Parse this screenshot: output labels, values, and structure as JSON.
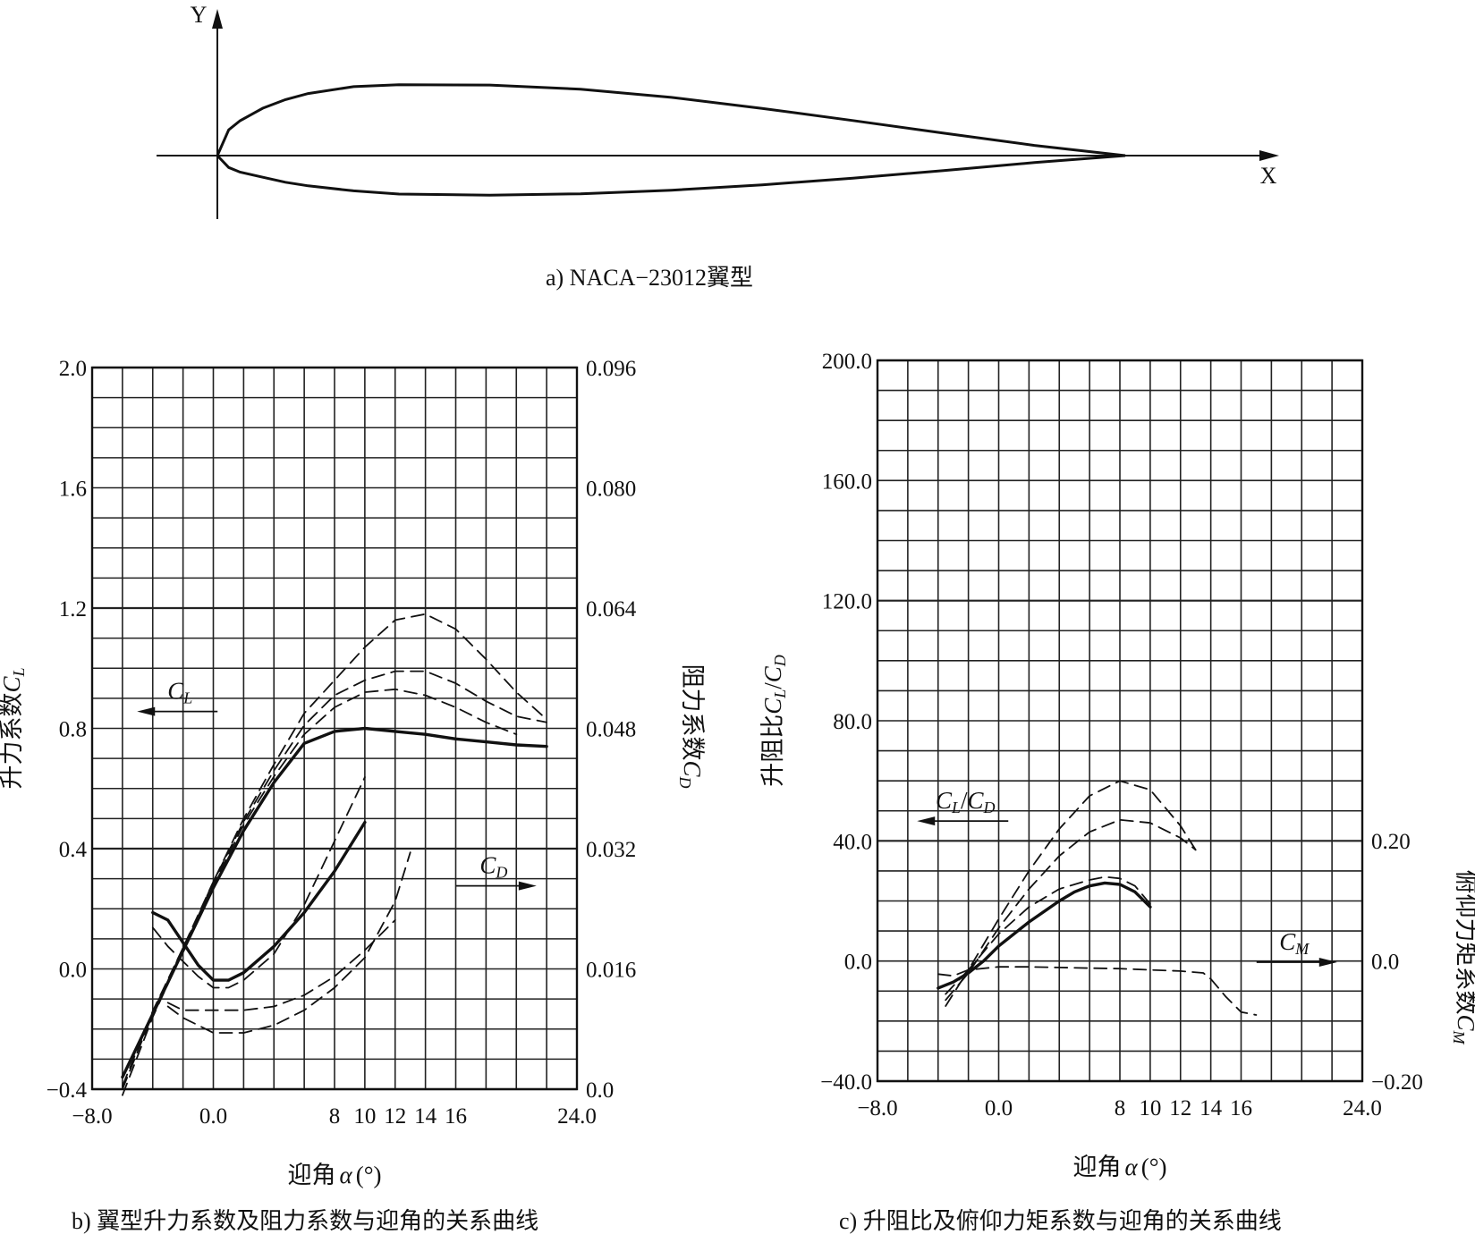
{
  "captions": {
    "a": "a) NACA−23012翼型",
    "b": "b) 翼型升力系数及阻力系数与迎角的关系曲线",
    "c": "c) 升阻比及俯仰力矩系数与迎角的关系曲线"
  },
  "airfoil": {
    "x_axis_label": "X",
    "y_axis_label": "Y",
    "upper_surface": [
      [
        0,
        0
      ],
      [
        0.0125,
        0.0267
      ],
      [
        0.025,
        0.0361
      ],
      [
        0.05,
        0.0491
      ],
      [
        0.075,
        0.058
      ],
      [
        0.1,
        0.0643
      ],
      [
        0.15,
        0.0714
      ],
      [
        0.2,
        0.0733
      ],
      [
        0.3,
        0.0731
      ],
      [
        0.4,
        0.0688
      ],
      [
        0.5,
        0.0603
      ],
      [
        0.6,
        0.0489
      ],
      [
        0.7,
        0.0363
      ],
      [
        0.8,
        0.0232
      ],
      [
        0.9,
        0.0106
      ],
      [
        1.0,
        0.0
      ]
    ],
    "lower_surface": [
      [
        0,
        0
      ],
      [
        0.0125,
        -0.0123
      ],
      [
        0.025,
        -0.0171
      ],
      [
        0.05,
        -0.0224
      ],
      [
        0.075,
        -0.0276
      ],
      [
        0.1,
        -0.0313
      ],
      [
        0.15,
        -0.0365
      ],
      [
        0.2,
        -0.0398
      ],
      [
        0.3,
        -0.041
      ],
      [
        0.4,
        -0.0395
      ],
      [
        0.5,
        -0.0358
      ],
      [
        0.6,
        -0.0303
      ],
      [
        0.7,
        -0.0233
      ],
      [
        0.8,
        -0.0155
      ],
      [
        0.9,
        -0.0072
      ],
      [
        1.0,
        0.0
      ]
    ]
  },
  "chart_data": [
    {
      "type": "line",
      "xlabel_prefix": "迎角",
      "xlabel_symbol": "α",
      "xlabel_suffix": "(°)",
      "ylabel_left_text": "升力系数",
      "ylabel_left_symbol": "C",
      "ylabel_left_sub": "L",
      "ylabel_right_text": "阻力系数",
      "ylabel_right_symbol": "C",
      "ylabel_right_sub": "D",
      "xlim": [
        -8,
        24
      ],
      "ylim_left": [
        -0.4,
        2.0
      ],
      "ylim_right": [
        0.0,
        0.096
      ],
      "x_ticks": [
        "−8.0",
        "0.0",
        "8",
        "10",
        "12",
        "14",
        "16",
        "24.0"
      ],
      "x_tick_values": [
        -8,
        0,
        8,
        10,
        12,
        14,
        16,
        24
      ],
      "y_left_ticks": [
        "−0.4",
        "0.0",
        "0.4",
        "0.8",
        "1.2",
        "1.6",
        "2.0"
      ],
      "y_left_tick_values": [
        -0.4,
        0.0,
        0.4,
        0.8,
        1.2,
        1.6,
        2.0
      ],
      "y_right_ticks": [
        "0.0",
        "0.016",
        "0.032",
        "0.048",
        "0.064",
        "0.080",
        "0.096"
      ],
      "y_right_tick_values": [
        0.0,
        0.016,
        0.032,
        0.048,
        0.064,
        0.08,
        0.096
      ],
      "grid": true,
      "annotations": [
        {
          "symbol": "C",
          "sub": "L",
          "arrow": "left",
          "x": -2.2,
          "y": 0.88
        },
        {
          "symbol": "C",
          "sub": "D",
          "arrow": "right",
          "x": 18.5,
          "y": 0.3
        }
      ],
      "series": [
        {
          "axis": "left",
          "style": "solid",
          "x": [
            -6,
            -4,
            -2,
            0,
            2,
            4,
            6,
            8,
            10,
            12,
            14,
            16,
            18,
            20,
            22
          ],
          "y": [
            -0.36,
            -0.15,
            0.06,
            0.27,
            0.46,
            0.62,
            0.75,
            0.79,
            0.8,
            0.79,
            0.78,
            0.765,
            0.755,
            0.745,
            0.74
          ]
        },
        {
          "axis": "left",
          "style": "dashed",
          "x": [
            -6,
            -4,
            -2,
            0,
            2,
            4,
            6,
            8,
            10,
            12,
            14,
            16,
            18,
            20,
            22
          ],
          "y": [
            -0.42,
            -0.16,
            0.06,
            0.29,
            0.5,
            0.68,
            0.85,
            0.96,
            1.07,
            1.16,
            1.18,
            1.13,
            1.03,
            0.92,
            0.83
          ]
        },
        {
          "axis": "left",
          "style": "dashed",
          "x": [
            -6,
            -4,
            -2,
            0,
            2,
            4,
            6,
            8,
            10,
            12,
            14,
            16,
            18,
            20,
            22
          ],
          "y": [
            -0.4,
            -0.15,
            0.07,
            0.29,
            0.49,
            0.66,
            0.81,
            0.91,
            0.96,
            0.99,
            0.99,
            0.95,
            0.89,
            0.84,
            0.82
          ]
        },
        {
          "axis": "left",
          "style": "dashed",
          "x": [
            -6,
            -4,
            -2,
            0,
            2,
            4,
            6,
            8,
            10,
            12,
            14,
            16,
            18,
            20
          ],
          "y": [
            -0.39,
            -0.14,
            0.07,
            0.28,
            0.48,
            0.64,
            0.78,
            0.87,
            0.92,
            0.93,
            0.91,
            0.87,
            0.82,
            0.78
          ]
        },
        {
          "axis": "right",
          "style": "solid",
          "x": [
            -4,
            -3,
            -2,
            -1,
            0,
            1,
            2,
            4,
            6,
            8,
            10
          ],
          "y": [
            0.0235,
            0.0225,
            0.0195,
            0.0165,
            0.0145,
            0.0145,
            0.0155,
            0.019,
            0.0235,
            0.029,
            0.0355
          ]
        },
        {
          "axis": "right",
          "style": "dashed",
          "x": [
            -4,
            -3,
            -2,
            -1,
            0,
            1,
            2,
            4,
            6,
            8,
            10
          ],
          "y": [
            0.0215,
            0.019,
            0.017,
            0.015,
            0.0135,
            0.0135,
            0.0145,
            0.018,
            0.0245,
            0.033,
            0.0415
          ]
        },
        {
          "axis": "right",
          "style": "dashed",
          "x": [
            -3,
            -2,
            0,
            2,
            4,
            6,
            8,
            10,
            12,
            13
          ],
          "y": [
            0.011,
            0.0095,
            0.0075,
            0.0075,
            0.0085,
            0.0105,
            0.0135,
            0.0175,
            0.025,
            0.0315
          ]
        },
        {
          "axis": "right",
          "style": "dashed",
          "x": [
            -3,
            -2,
            0,
            2,
            4,
            6,
            8,
            10,
            12
          ],
          "y": [
            0.0115,
            0.0105,
            0.0105,
            0.0105,
            0.011,
            0.0125,
            0.015,
            0.0185,
            0.0225
          ]
        }
      ]
    },
    {
      "type": "line",
      "xlabel_prefix": "迎角",
      "xlabel_symbol": "α",
      "xlabel_suffix": "(°)",
      "ylabel_left_text": "升阻比",
      "ylabel_left_symbol": "C",
      "ylabel_left_sub": "L",
      "ylabel_left_slash": "/",
      "ylabel_left_symbol2": "C",
      "ylabel_left_sub2": "D",
      "ylabel_right_text": "俯仰力矩系数",
      "ylabel_right_symbol": "C",
      "ylabel_right_sub": "M",
      "xlim": [
        -8,
        24
      ],
      "ylim_left": [
        -40,
        200
      ],
      "ylim_right": [
        -0.2,
        0.2
      ],
      "x_ticks": [
        "−8.0",
        "0.0",
        "8",
        "10",
        "12",
        "14",
        "16",
        "24.0"
      ],
      "x_tick_values": [
        -8,
        0,
        8,
        10,
        12,
        14,
        16,
        24
      ],
      "y_left_ticks": [
        "−40.0",
        "0.0",
        "40.0",
        "80.0",
        "120.0",
        "160.0",
        "200.0"
      ],
      "y_left_tick_values": [
        -40,
        0,
        40,
        80,
        120,
        160,
        200
      ],
      "y_right_ticks": [
        "−0.20",
        "0.0",
        "0.20"
      ],
      "y_right_tick_values": [
        -0.2,
        0.0,
        0.2
      ],
      "grid": true,
      "annotations": [
        {
          "symbol": "C",
          "sub": "L",
          "slash": "/",
          "symbol2": "C",
          "sub2": "D",
          "arrow": "left",
          "x": -2.2,
          "y": 49
        },
        {
          "symbol": "C",
          "sub": "M",
          "arrow": "right",
          "x": 19.5,
          "y": 2
        }
      ],
      "series": [
        {
          "axis": "left",
          "style": "solid",
          "x": [
            -4,
            -3,
            -2,
            -1,
            0,
            2,
            4,
            5,
            6,
            7,
            8,
            9,
            10
          ],
          "y": [
            -9,
            -7,
            -4,
            0,
            5,
            13,
            20,
            23,
            25,
            26,
            25.5,
            23,
            18
          ]
        },
        {
          "axis": "left",
          "style": "dashed",
          "x": [
            -3.5,
            -2,
            0,
            2,
            4,
            6,
            7,
            8,
            9,
            10
          ],
          "y": [
            -15,
            -3,
            9,
            18,
            24,
            27,
            28,
            27.5,
            25,
            19
          ]
        },
        {
          "axis": "left",
          "style": "dashed",
          "x": [
            -3.5,
            -2,
            0,
            2,
            4,
            6,
            8,
            10,
            12,
            13
          ],
          "y": [
            -13,
            -4,
            11,
            24,
            35,
            43,
            47,
            46,
            41,
            37
          ]
        },
        {
          "axis": "left",
          "style": "dashed",
          "x": [
            -3.5,
            -2,
            0,
            2,
            4,
            6,
            8,
            10,
            12,
            13
          ],
          "y": [
            -11,
            -3,
            14,
            30,
            44,
            55,
            60,
            57,
            45,
            37
          ]
        },
        {
          "axis": "right",
          "style": "dashed",
          "x": [
            -4,
            -3,
            -2,
            0,
            2,
            4,
            6,
            8,
            10,
            12,
            13.5,
            14,
            15,
            16,
            17
          ],
          "y": [
            -0.022,
            -0.025,
            -0.015,
            -0.01,
            -0.01,
            -0.011,
            -0.012,
            -0.013,
            -0.015,
            -0.017,
            -0.02,
            -0.03,
            -0.06,
            -0.085,
            -0.09
          ]
        }
      ]
    }
  ]
}
